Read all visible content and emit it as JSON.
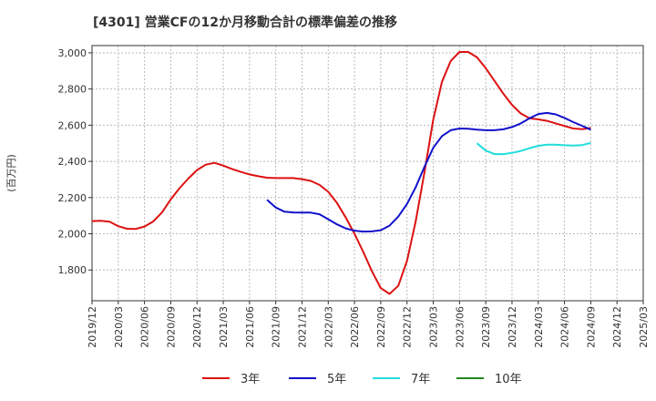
{
  "chart_data": {
    "type": "line",
    "title": "[4301]  営業CFの12か月移動合計の標準偏差の推移",
    "ylabel": "(百万円)",
    "xlabel": "",
    "ylim": [
      1630,
      3040
    ],
    "yticks": [
      1800,
      2000,
      2200,
      2400,
      2600,
      2800,
      3000
    ],
    "ytick_labels": [
      "1,800",
      "2,000",
      "2,200",
      "2,400",
      "2,600",
      "2,800",
      "3,000"
    ],
    "xticks": [
      "2019/12",
      "2020/03",
      "2020/06",
      "2020/09",
      "2020/12",
      "2021/03",
      "2021/06",
      "2021/09",
      "2021/12",
      "2022/03",
      "2022/06",
      "2022/09",
      "2022/12",
      "2023/03",
      "2023/06",
      "2023/09",
      "2023/12",
      "2024/03",
      "2024/06",
      "2024/09",
      "2024/12",
      "2025/03"
    ],
    "grid": true,
    "legend_position": "bottom",
    "series": [
      {
        "name": "3年",
        "color": "#dd1111",
        "points": [
          [
            "2019/12",
            2070
          ],
          [
            "2020/01",
            2072
          ],
          [
            "2020/02",
            2067
          ],
          [
            "2020/03",
            2042
          ],
          [
            "2020/04",
            2028
          ],
          [
            "2020/05",
            2027
          ],
          [
            "2020/06",
            2040
          ],
          [
            "2020/07",
            2068
          ],
          [
            "2020/08",
            2118
          ],
          [
            "2020/09",
            2190
          ],
          [
            "2020/10",
            2252
          ],
          [
            "2020/11",
            2305
          ],
          [
            "2020/12",
            2352
          ],
          [
            "2021/01",
            2382
          ],
          [
            "2021/02",
            2392
          ],
          [
            "2021/03",
            2377
          ],
          [
            "2021/04",
            2358
          ],
          [
            "2021/05",
            2342
          ],
          [
            "2021/06",
            2328
          ],
          [
            "2021/07",
            2318
          ],
          [
            "2021/08",
            2310
          ],
          [
            "2021/09",
            2308
          ],
          [
            "2021/10",
            2308
          ],
          [
            "2021/11",
            2308
          ],
          [
            "2021/12",
            2302
          ],
          [
            "2022/01",
            2292
          ],
          [
            "2022/02",
            2270
          ],
          [
            "2022/03",
            2232
          ],
          [
            "2022/04",
            2170
          ],
          [
            "2022/05",
            2090
          ],
          [
            "2022/06",
            2000
          ],
          [
            "2022/07",
            1900
          ],
          [
            "2022/08",
            1792
          ],
          [
            "2022/09",
            1700
          ],
          [
            "2022/10",
            1668
          ],
          [
            "2022/11",
            1712
          ],
          [
            "2022/12",
            1850
          ],
          [
            "2023/01",
            2070
          ],
          [
            "2023/02",
            2340
          ],
          [
            "2023/03",
            2630
          ],
          [
            "2023/04",
            2840
          ],
          [
            "2023/05",
            2955
          ],
          [
            "2023/06",
            3005
          ],
          [
            "2023/07",
            3005
          ],
          [
            "2023/08",
            2975
          ],
          [
            "2023/09",
            2915
          ],
          [
            "2023/10",
            2845
          ],
          [
            "2023/11",
            2775
          ],
          [
            "2023/12",
            2712
          ],
          [
            "2024/01",
            2665
          ],
          [
            "2024/02",
            2638
          ],
          [
            "2024/03",
            2632
          ],
          [
            "2024/04",
            2624
          ],
          [
            "2024/05",
            2610
          ],
          [
            "2024/06",
            2596
          ],
          [
            "2024/07",
            2582
          ],
          [
            "2024/08",
            2578
          ],
          [
            "2024/09",
            2585
          ]
        ]
      },
      {
        "name": "5年",
        "color": "#1111cc",
        "points": [
          [
            "2021/08",
            2188
          ],
          [
            "2021/09",
            2145
          ],
          [
            "2021/10",
            2122
          ],
          [
            "2021/11",
            2118
          ],
          [
            "2021/12",
            2117
          ],
          [
            "2022/01",
            2117
          ],
          [
            "2022/02",
            2108
          ],
          [
            "2022/03",
            2080
          ],
          [
            "2022/04",
            2052
          ],
          [
            "2022/05",
            2030
          ],
          [
            "2022/06",
            2017
          ],
          [
            "2022/07",
            2012
          ],
          [
            "2022/08",
            2013
          ],
          [
            "2022/09",
            2020
          ],
          [
            "2022/10",
            2045
          ],
          [
            "2022/11",
            2095
          ],
          [
            "2022/12",
            2165
          ],
          [
            "2023/01",
            2258
          ],
          [
            "2023/02",
            2370
          ],
          [
            "2023/03",
            2475
          ],
          [
            "2023/04",
            2540
          ],
          [
            "2023/05",
            2572
          ],
          [
            "2023/06",
            2582
          ],
          [
            "2023/07",
            2580
          ],
          [
            "2023/08",
            2575
          ],
          [
            "2023/09",
            2572
          ],
          [
            "2023/10",
            2572
          ],
          [
            "2023/11",
            2577
          ],
          [
            "2023/12",
            2590
          ],
          [
            "2024/01",
            2610
          ],
          [
            "2024/02",
            2638
          ],
          [
            "2024/03",
            2662
          ],
          [
            "2024/04",
            2668
          ],
          [
            "2024/05",
            2660
          ],
          [
            "2024/06",
            2640
          ],
          [
            "2024/07",
            2617
          ],
          [
            "2024/08",
            2597
          ],
          [
            "2024/09",
            2575
          ]
        ]
      },
      {
        "name": "7年",
        "color": "#22dddd",
        "points": [
          [
            "2023/08",
            2500
          ],
          [
            "2023/09",
            2460
          ],
          [
            "2023/10",
            2440
          ],
          [
            "2023/11",
            2440
          ],
          [
            "2023/12",
            2447
          ],
          [
            "2024/01",
            2458
          ],
          [
            "2024/02",
            2473
          ],
          [
            "2024/03",
            2486
          ],
          [
            "2024/04",
            2492
          ],
          [
            "2024/05",
            2492
          ],
          [
            "2024/06",
            2489
          ],
          [
            "2024/07",
            2487
          ],
          [
            "2024/08",
            2490
          ],
          [
            "2024/09",
            2502
          ]
        ]
      },
      {
        "name": "10年",
        "color": "#228822",
        "points": []
      }
    ]
  }
}
